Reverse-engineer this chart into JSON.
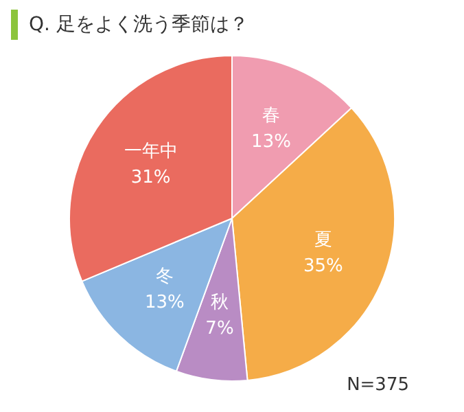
{
  "chart_data": {
    "type": "pie",
    "title": "Q. 足をよく洗う季節は？",
    "categories": [
      "春",
      "夏",
      "秋",
      "冬",
      "一年中"
    ],
    "values": [
      13,
      35,
      7,
      13,
      31
    ],
    "colors": [
      "#f09cb0",
      "#f5ac48",
      "#b98cc4",
      "#8bb6e2",
      "#ea6b5f"
    ],
    "value_labels": [
      "13%",
      "35%",
      "7%",
      "13%",
      "31%"
    ],
    "legend": false,
    "annotations": [
      "N=375"
    ]
  }
}
